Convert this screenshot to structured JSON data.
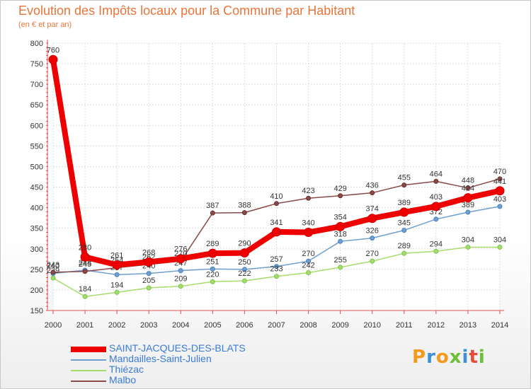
{
  "title": "Evolution des Impôts locaux pour la Commune par Habitant",
  "subtitle": "(en € et par an)",
  "logo": {
    "text": "Proxiti",
    "colors": [
      "#f29a1d",
      "#3e8fd8",
      "#f29a1d",
      "#6cbf3a",
      "#3e8fd8",
      "#e84b3a",
      "#6cbf3a"
    ]
  },
  "chart_data": {
    "type": "line",
    "title": "Evolution des Impôts locaux pour la Commune par Habitant",
    "subtitle": "(en € et par an)",
    "x": [
      2000,
      2001,
      2002,
      2003,
      2004,
      2005,
      2006,
      2007,
      2008,
      2009,
      2010,
      2011,
      2012,
      2013,
      2014
    ],
    "ylim": [
      150,
      800
    ],
    "yticks": [
      150,
      200,
      250,
      300,
      350,
      400,
      450,
      500,
      550,
      600,
      650,
      700,
      750,
      800
    ],
    "grid": true,
    "legend": "bottom-left",
    "series": [
      {
        "name": "SAINT-JACQUES-DES-BLATS",
        "color": "#ee0000",
        "dot": "#cc0000",
        "width": 8,
        "values": [
          760,
          280,
          261,
          268,
          276,
          289,
          290,
          341,
          340,
          354,
          374,
          389,
          403,
          424,
          441
        ],
        "labels": [
          760,
          280,
          261,
          268,
          276,
          289,
          290,
          341,
          340,
          354,
          374,
          389,
          403,
          424,
          441
        ]
      },
      {
        "name": "Mandailles-Saint-Julien",
        "color": "#6f9fd0",
        "dot": "#4a7fc0",
        "width": 1.5,
        "values": [
          240,
          248,
          237,
          240,
          247,
          251,
          250,
          257,
          270,
          318,
          326,
          345,
          372,
          389,
          403
        ],
        "labels": [
          240,
          248,
          237,
          240,
          247,
          251,
          250,
          257,
          270,
          318,
          326,
          345,
          372,
          389,
          403
        ]
      },
      {
        "name": "Thiézac",
        "color": "#a6dc6c",
        "dot": "#7cc44a",
        "width": 1.5,
        "values": [
          229,
          184,
          194,
          205,
          209,
          220,
          222,
          233,
          242,
          255,
          270,
          289,
          294,
          304,
          304
        ],
        "labels": [
          229,
          184,
          194,
          205,
          209,
          220,
          222,
          233,
          242,
          255,
          270,
          289,
          294,
          304,
          304
        ]
      },
      {
        "name": "Malbo",
        "color": "#8a4a4a",
        "dot": "#6b2f2f",
        "width": 1.5,
        "values": [
          243,
          245,
          254,
          262,
          270,
          387,
          388,
          410,
          423,
          429,
          436,
          455,
          464,
          448,
          470
        ],
        "labels": [
          243,
          245,
          254,
          262,
          270,
          387,
          388,
          410,
          423,
          429,
          436,
          455,
          464,
          448,
          470
        ]
      }
    ]
  }
}
